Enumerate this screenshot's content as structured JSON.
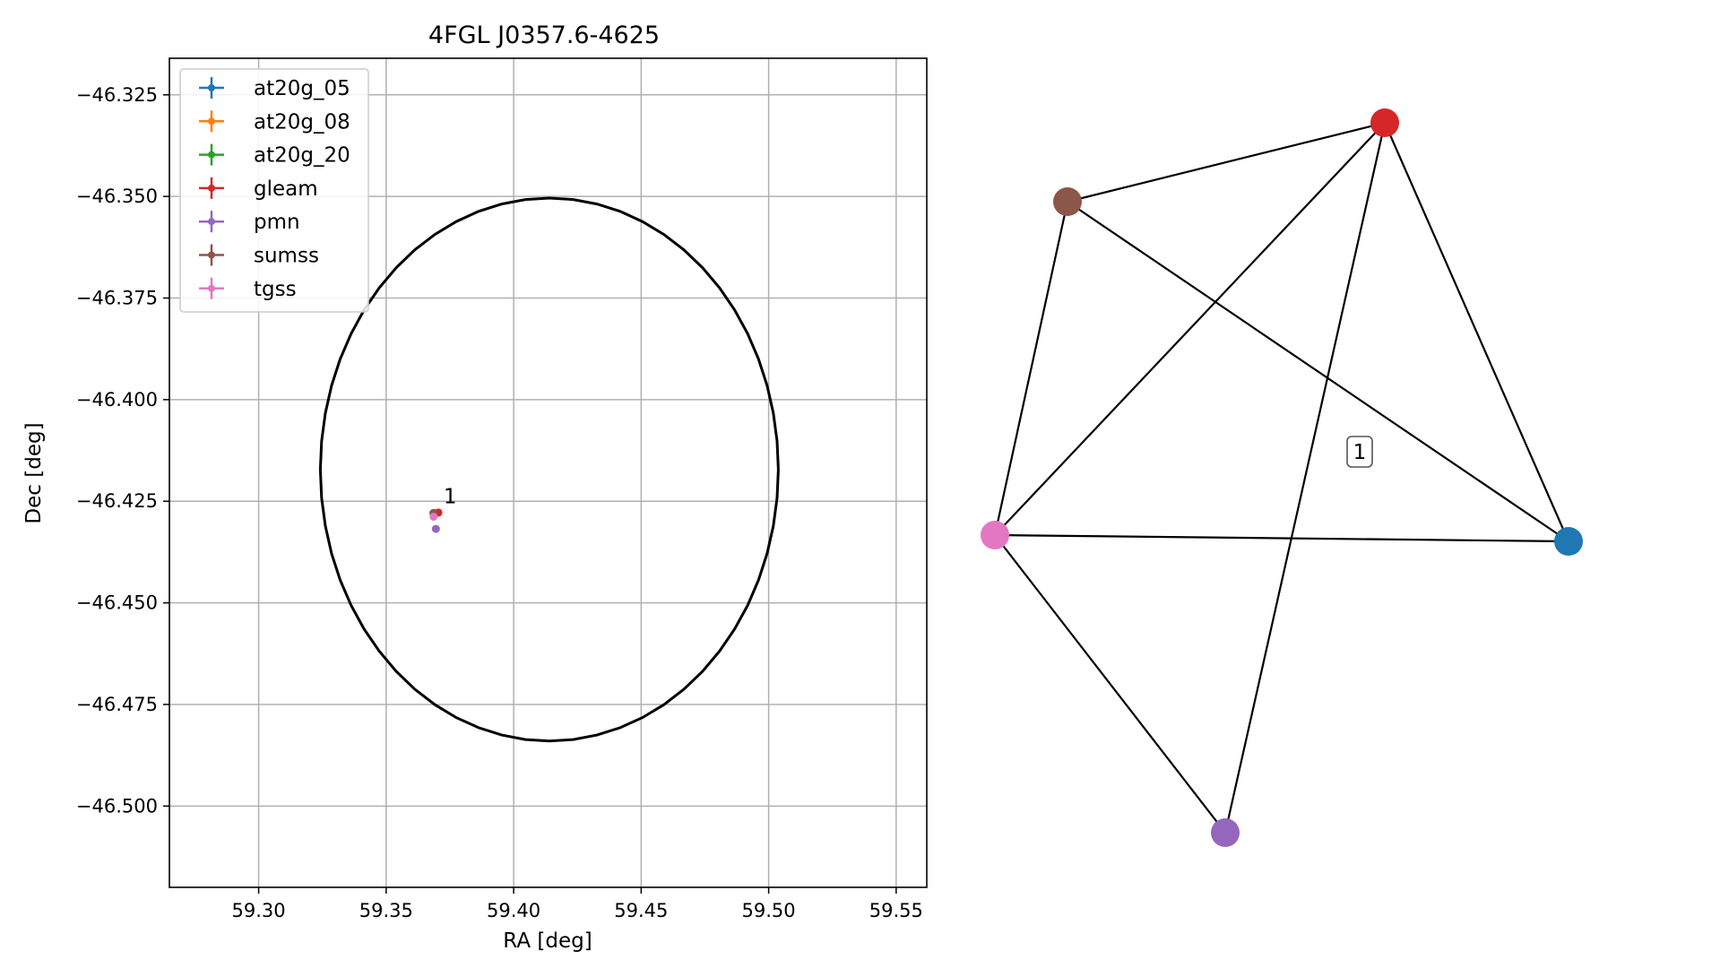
{
  "chart_data": [
    {
      "type": "scatter",
      "title": "4FGL J0357.6-4625",
      "xlabel": "RA [deg]",
      "ylabel": "Dec [deg]",
      "xlim": [
        59.265,
        59.562
      ],
      "ylim": [
        -46.52,
        -46.316
      ],
      "xticks": [
        59.3,
        59.35,
        59.4,
        59.45,
        59.5,
        59.55
      ],
      "xtick_labels": [
        "59.30",
        "59.35",
        "59.40",
        "59.45",
        "59.50",
        "59.55"
      ],
      "yticks": [
        -46.325,
        -46.35,
        -46.375,
        -46.4,
        -46.425,
        -46.45,
        -46.475,
        -46.5
      ],
      "ytick_labels": [
        "−46.325",
        "−46.350",
        "−46.375",
        "−46.400",
        "−46.425",
        "−46.450",
        "−46.475",
        "−46.500"
      ],
      "grid": true,
      "legend_position": "top-left",
      "series": [
        {
          "name": "at20g_05",
          "color": "#1f77b4",
          "points": [
            {
              "x": 59.369,
              "y": -46.4279
            }
          ]
        },
        {
          "name": "at20g_08",
          "color": "#ff7f0e",
          "points": [
            {
              "x": 59.369,
              "y": -46.4279
            }
          ]
        },
        {
          "name": "at20g_20",
          "color": "#2ca02c",
          "points": [
            {
              "x": 59.369,
              "y": -46.4279
            }
          ]
        },
        {
          "name": "gleam",
          "color": "#d62728",
          "points": [
            {
              "x": 59.3705,
              "y": -46.4278
            }
          ]
        },
        {
          "name": "pmn",
          "color": "#9467bd",
          "points": [
            {
              "x": 59.3695,
              "y": -46.4318
            }
          ]
        },
        {
          "name": "sumss",
          "color": "#8c564b",
          "points": [
            {
              "x": 59.3685,
              "y": -46.4279
            }
          ]
        },
        {
          "name": "tgss",
          "color": "#e377c2",
          "points": [
            {
              "x": 59.3686,
              "y": -46.4288
            }
          ]
        }
      ],
      "ellipse": {
        "center_ra": 59.414,
        "center_dec": -46.4172,
        "semi_axis_ra": 0.0898,
        "semi_axis_dec": 0.0668,
        "color": "#000000"
      },
      "annotations": [
        {
          "text": "1",
          "x": 59.3725,
          "y": -46.4255
        }
      ]
    },
    {
      "type": "graph",
      "cluster_label": "1",
      "nodes": [
        {
          "id": "gleam",
          "color": "#d62728"
        },
        {
          "id": "sumss",
          "color": "#8c564b"
        },
        {
          "id": "tgss",
          "color": "#e377c2"
        },
        {
          "id": "at20g",
          "color": "#1f77b4"
        },
        {
          "id": "pmn",
          "color": "#9467bd"
        }
      ],
      "edges": [
        [
          "sumss",
          "gleam"
        ],
        [
          "sumss",
          "tgss"
        ],
        [
          "sumss",
          "at20g"
        ],
        [
          "gleam",
          "tgss"
        ],
        [
          "gleam",
          "pmn"
        ],
        [
          "gleam",
          "at20g"
        ],
        [
          "tgss",
          "at20g"
        ],
        [
          "tgss",
          "pmn"
        ]
      ]
    }
  ]
}
